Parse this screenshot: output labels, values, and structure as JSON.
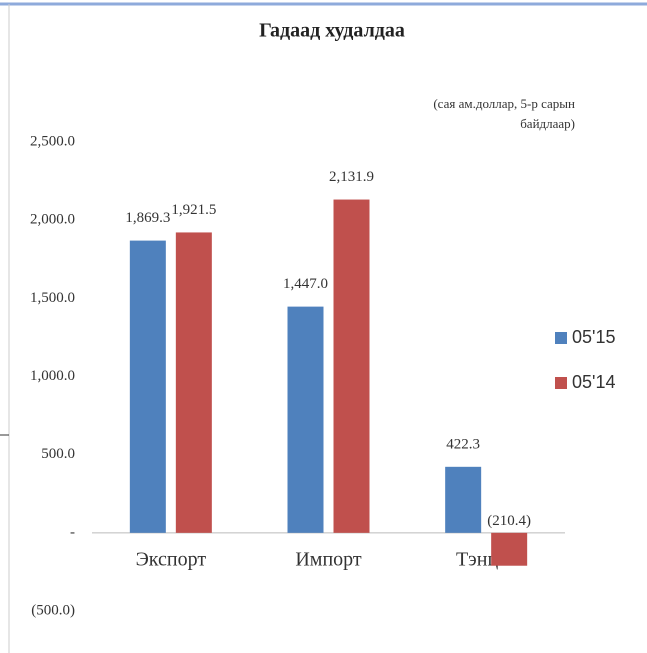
{
  "chart_data": {
    "type": "bar",
    "title": "Гадаад худалдаа",
    "subtitle": "(сая ам.доллар, 5-р сарын байдлаар)",
    "categories": [
      "Экспорт",
      "Импорт",
      "Тэнцэл"
    ],
    "series": [
      {
        "name": "05'15",
        "color": "#4f81bd",
        "values": [
          1869.3,
          1447.0,
          422.3
        ],
        "value_labels": [
          "1,869.3",
          "1,447.0",
          "422.3"
        ]
      },
      {
        "name": "05'14",
        "color": "#c0504d",
        "values": [
          1921.5,
          2131.9,
          -210.4
        ],
        "value_labels": [
          "1,921.5",
          "2,131.9",
          "(210.4)"
        ]
      }
    ],
    "ylim": [
      -500,
      2500
    ],
    "yticks": [
      {
        "value": -500,
        "label": "(500.0)"
      },
      {
        "value": 0,
        "label": "-"
      },
      {
        "value": 500,
        "label": "500.0"
      },
      {
        "value": 1000,
        "label": "1,000.0"
      },
      {
        "value": 1500,
        "label": "1,500.0"
      },
      {
        "value": 2000,
        "label": "2,000.0"
      },
      {
        "value": 2500,
        "label": "2,500.0"
      }
    ],
    "grid": false,
    "legend": "right"
  }
}
